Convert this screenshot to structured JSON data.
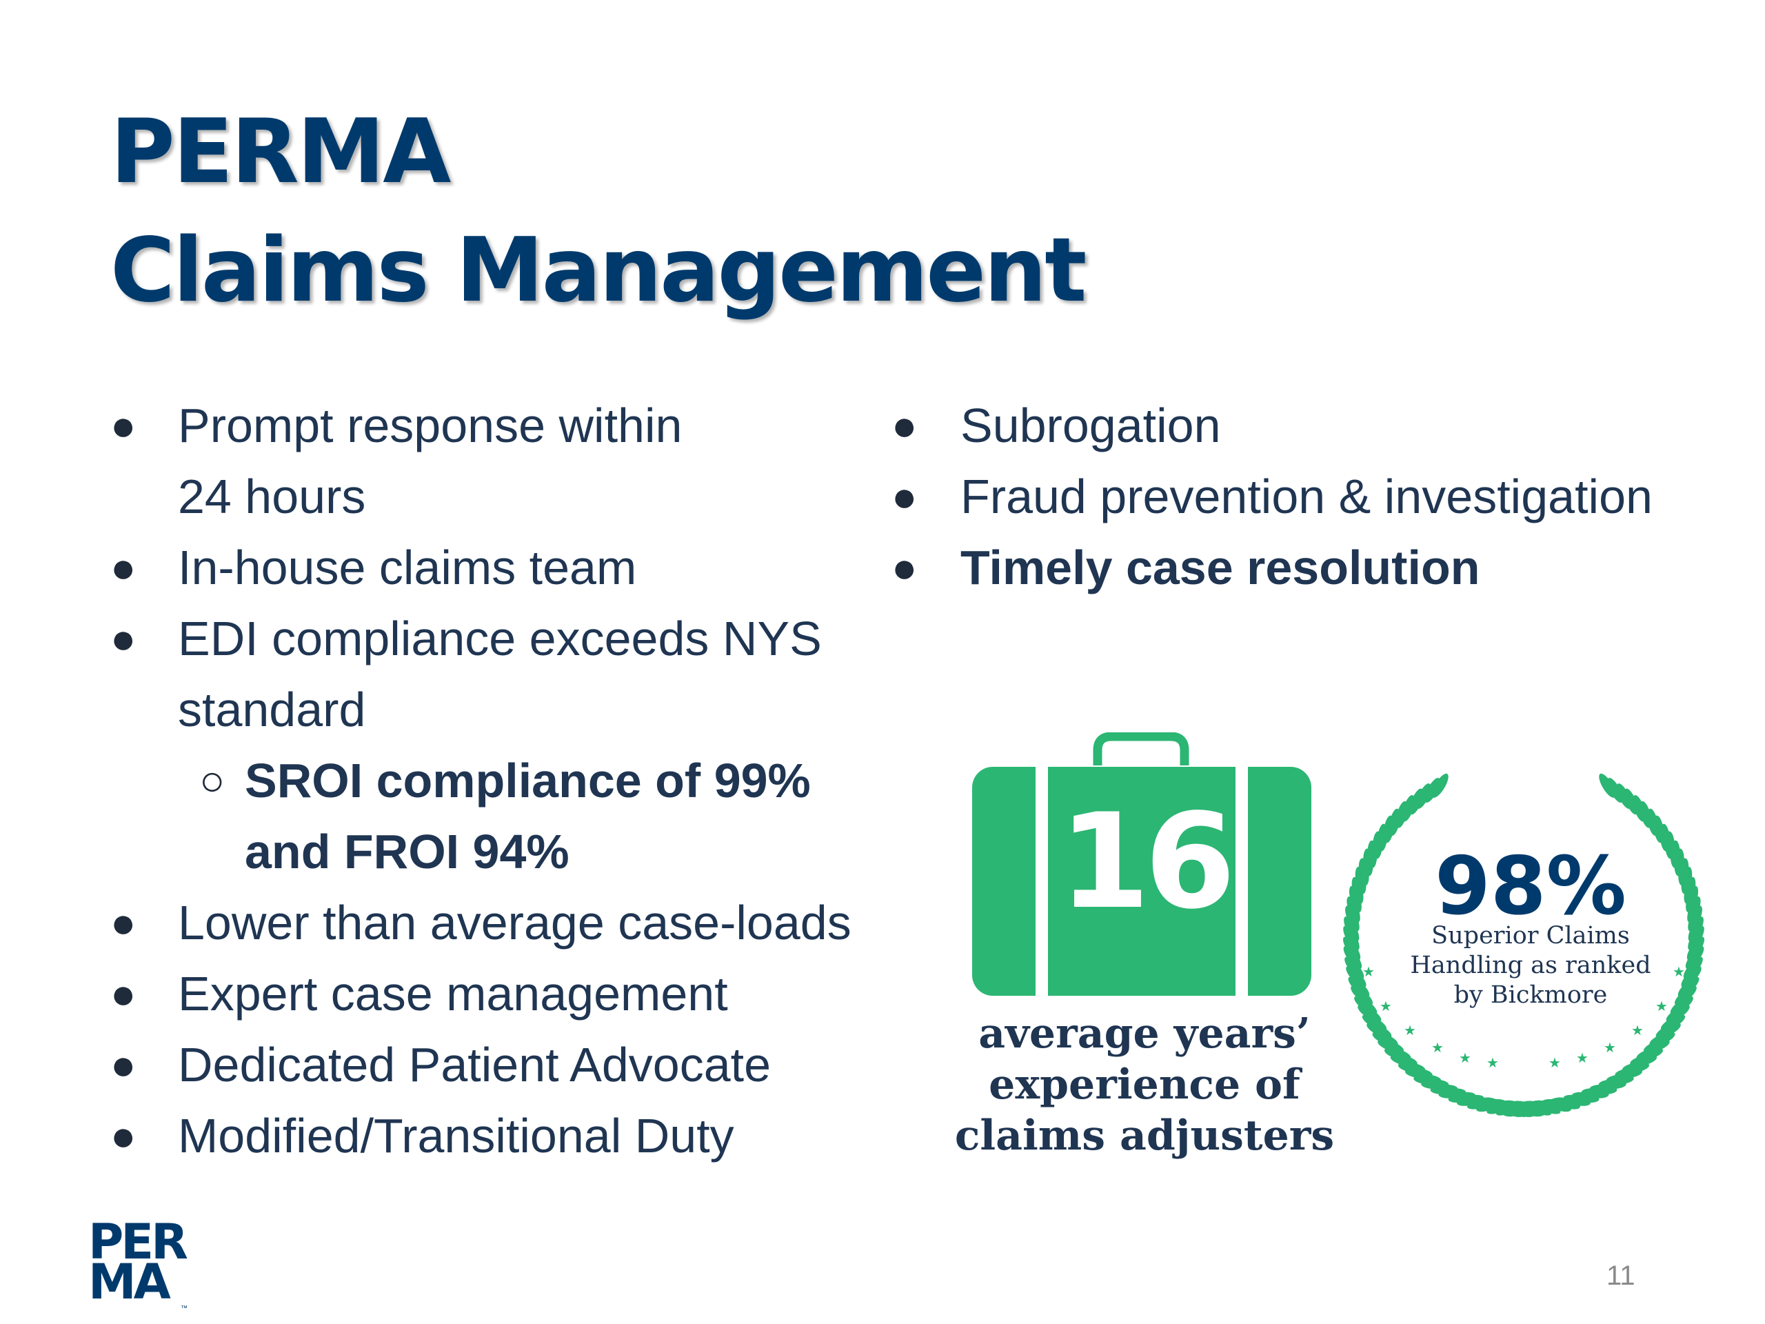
{
  "title": {
    "line1": "PERMA",
    "line2": "Claims Management"
  },
  "left_list": {
    "item1": {
      "line1": "Prompt response within",
      "line2": "24 hours"
    },
    "item2": "In-house claims team",
    "item3": {
      "line1": "EDI compliance exceeds NYS",
      "line2": "standard"
    },
    "subitem": {
      "line1": "SROI compliance of 99%",
      "line2": "and FROI 94%"
    },
    "item4": "Lower than average case-loads",
    "item5": "Expert case management",
    "item6": "Dedicated Patient Advocate",
    "item7": "Modified/Transitional Duty"
  },
  "right_list": {
    "item1": "Subrogation",
    "item2": "Fraud prevention & investigation",
    "item3": "Timely case resolution"
  },
  "stat_experience": {
    "value": "16",
    "caption_line1": "average years’",
    "caption_line2": "experience of",
    "caption_line3": "claims adjusters"
  },
  "stat_rating": {
    "value": "98%",
    "caption_line1": "Superior Claims",
    "caption_line2": "Handling as ranked",
    "caption_line3": "by Bickmore"
  },
  "logo": {
    "line1": "PER",
    "line2": "MA",
    "tm": "™"
  },
  "page_number": "11",
  "icons": {
    "bullet": "filled-circle",
    "sub_bullet": "hollow-circle",
    "suitcase": "suitcase-icon",
    "laurel": "laurel-wreath-icon"
  },
  "colors": {
    "title": "#003a6c",
    "text": "#1f3552",
    "accent_green": "#2bb673",
    "page_number": "#8a8a8a"
  }
}
